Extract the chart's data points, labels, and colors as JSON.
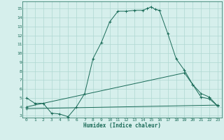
{
  "xlabel": "Humidex (Indice chaleur)",
  "xlim": [
    -0.5,
    23.5
  ],
  "ylim": [
    2.8,
    15.8
  ],
  "yticks": [
    3,
    4,
    5,
    6,
    7,
    8,
    9,
    10,
    11,
    12,
    13,
    14,
    15
  ],
  "xticks": [
    0,
    1,
    2,
    3,
    4,
    5,
    6,
    7,
    8,
    9,
    10,
    11,
    12,
    13,
    14,
    15,
    16,
    17,
    18,
    19,
    20,
    21,
    22,
    23
  ],
  "bg_color": "#d6efec",
  "grid_color": "#aed8d2",
  "line_color": "#1a6b58",
  "line1_x": [
    0,
    1,
    2,
    3,
    4,
    5,
    6,
    7,
    8,
    9,
    10,
    11,
    12,
    13,
    14,
    14.5,
    15,
    15.5,
    16,
    17,
    18,
    19,
    20,
    21,
    22,
    23
  ],
  "line1_y": [
    5.0,
    4.4,
    4.4,
    3.3,
    3.2,
    2.9,
    4.0,
    5.5,
    9.4,
    11.2,
    13.5,
    14.7,
    14.7,
    14.8,
    14.8,
    15.0,
    15.2,
    14.9,
    14.8,
    12.2,
    9.4,
    8.1,
    6.5,
    5.1,
    4.9,
    4.1
  ],
  "line2_x": [
    0,
    19,
    20,
    21,
    22,
    23
  ],
  "line2_y": [
    4.0,
    7.8,
    6.5,
    5.5,
    5.1,
    4.1
  ],
  "line3_x": [
    0,
    23
  ],
  "line3_y": [
    3.8,
    4.2
  ],
  "marker": "+"
}
